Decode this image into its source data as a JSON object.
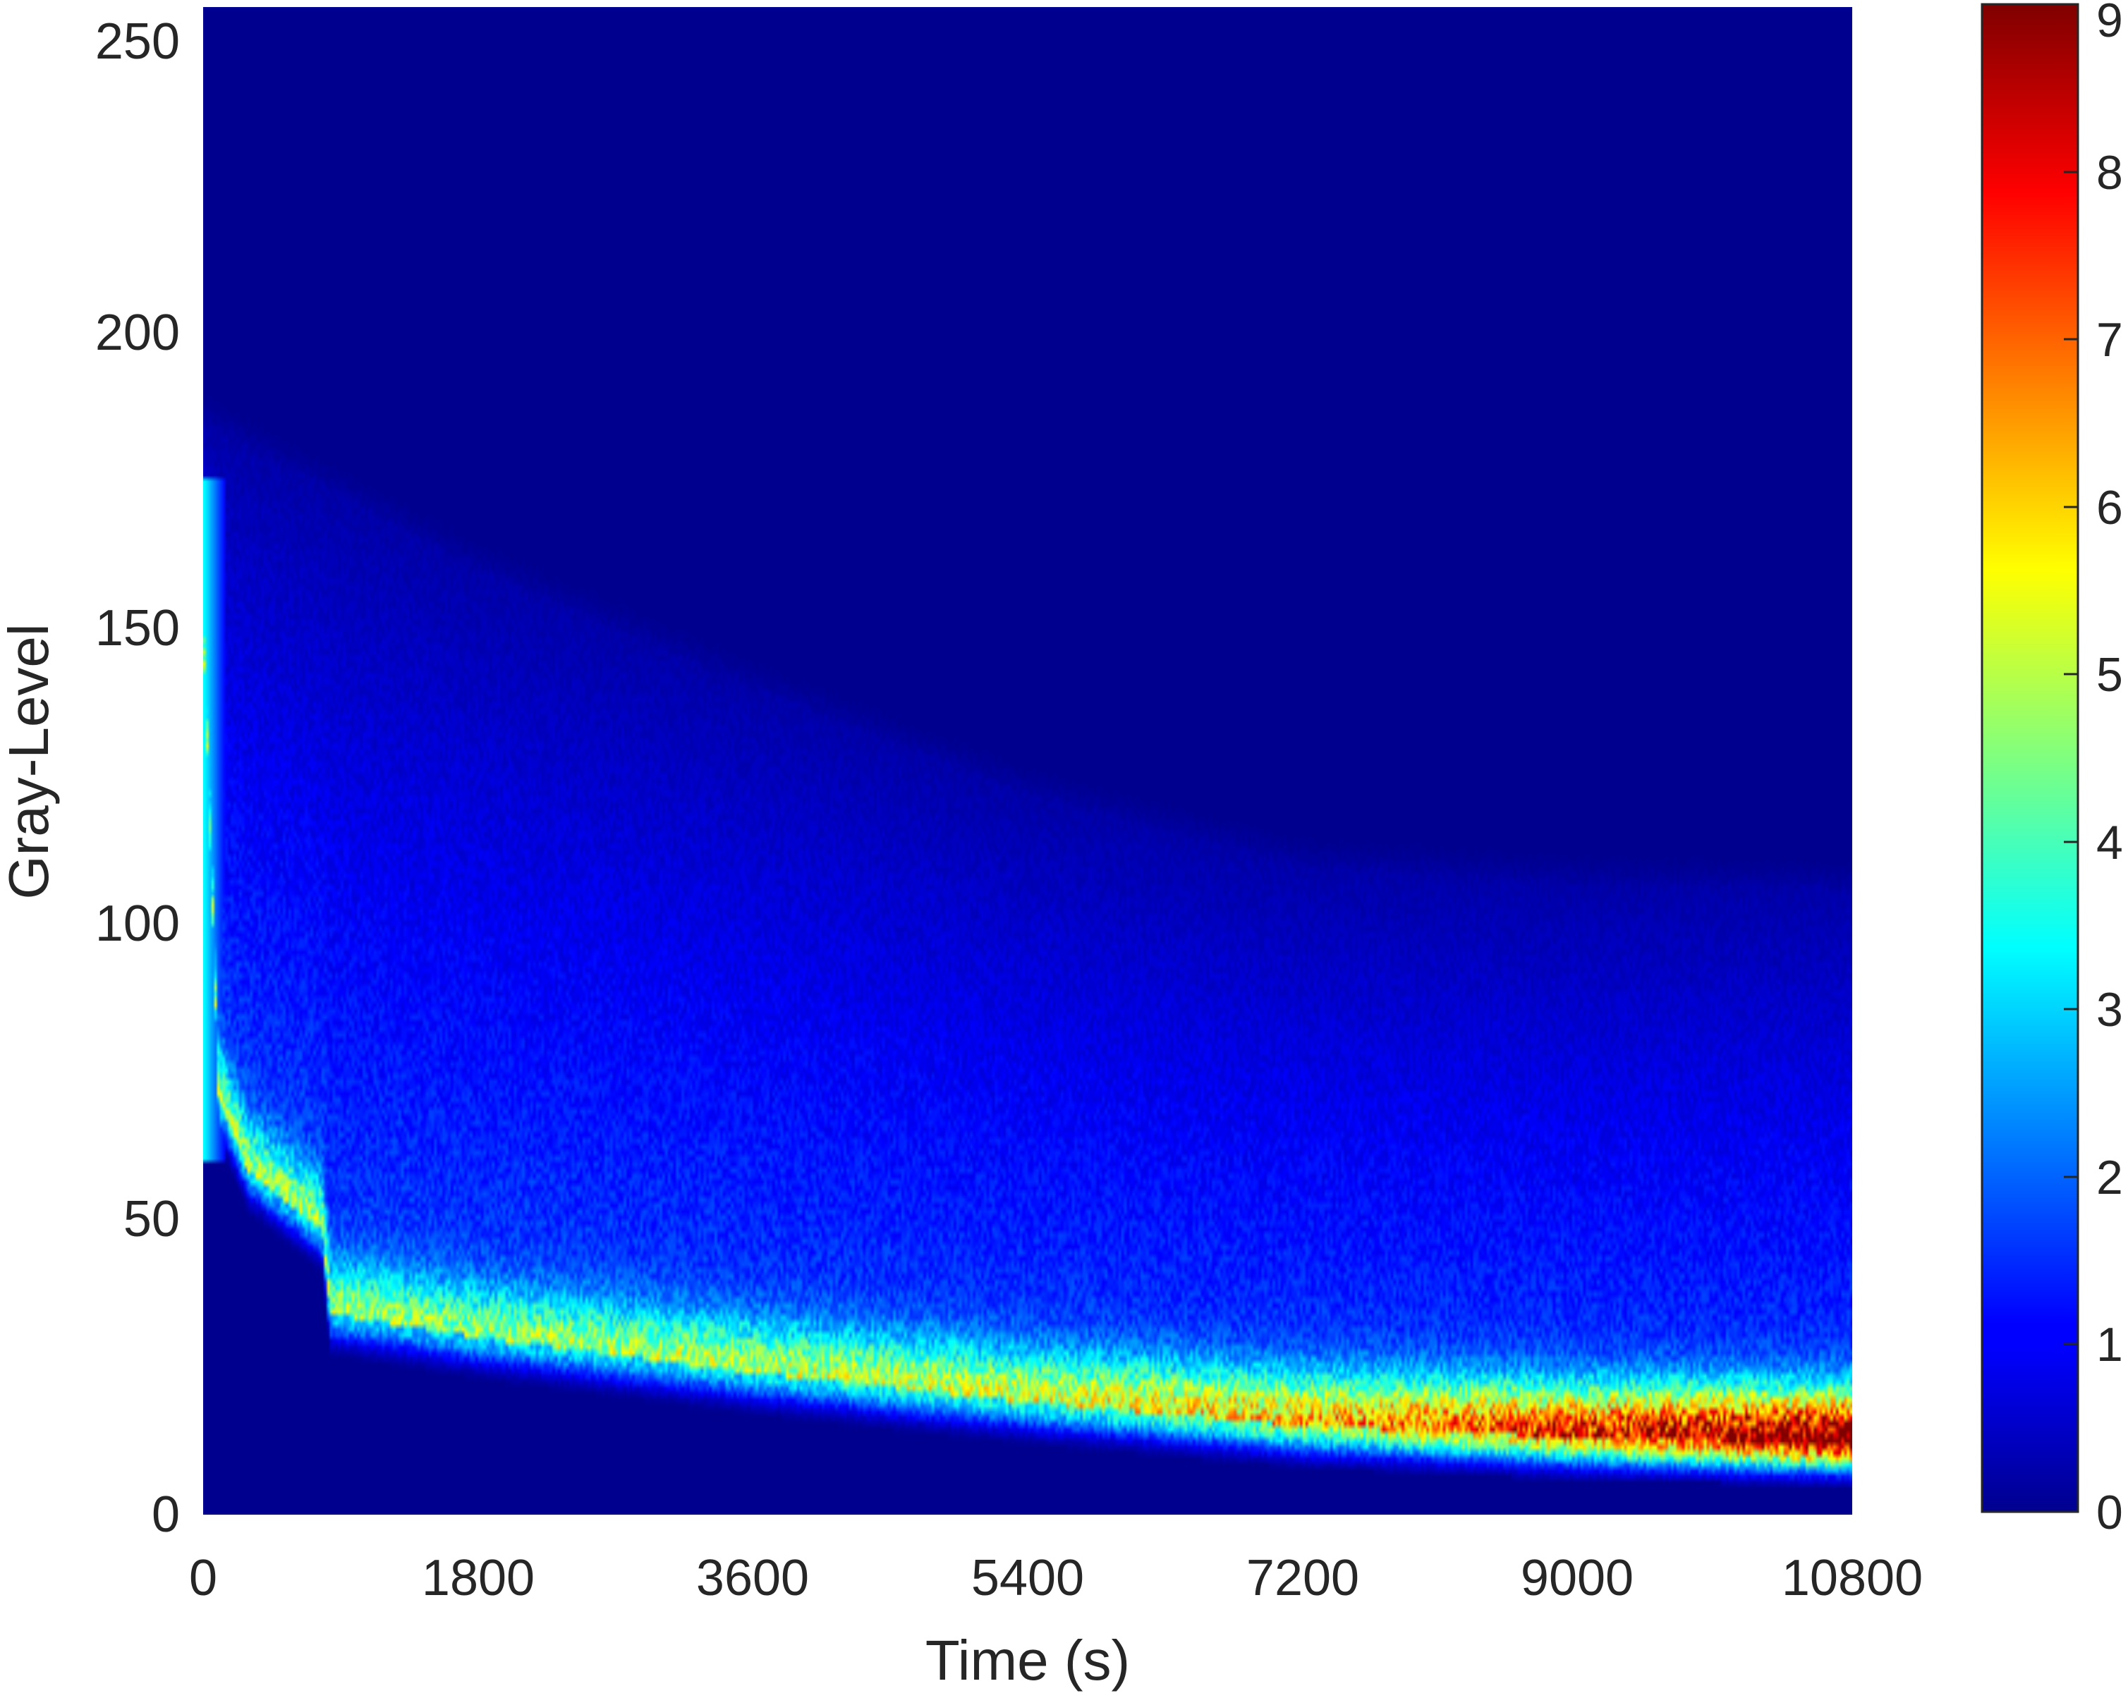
{
  "chart_data": {
    "type": "heatmap",
    "title": "",
    "xlabel": "Time (s)",
    "ylabel": "Gray-Level",
    "xlim": [
      0,
      10800
    ],
    "ylim": [
      0,
      255
    ],
    "x_ticks": [
      "0",
      "1800",
      "3600",
      "5400",
      "7200",
      "9000",
      "10800"
    ],
    "y_ticks": [
      "0",
      "50",
      "100",
      "150",
      "200",
      "250"
    ],
    "colormap": "jet",
    "colorbar": {
      "position": "right",
      "range": [
        0,
        9
      ],
      "ticks": [
        "0",
        "1",
        "2",
        "3",
        "4",
        "5",
        "6",
        "7",
        "8",
        "9"
      ]
    },
    "grid": false,
    "description_features": {
      "peak_band": [
        {
          "t": 0,
          "g": 150
        },
        {
          "t": 100,
          "g": 70
        },
        {
          "t": 300,
          "g": 58
        },
        {
          "t": 780,
          "g": 48
        },
        {
          "t": 830,
          "g": 34
        },
        {
          "t": 1800,
          "g": 30
        },
        {
          "t": 3600,
          "g": 24
        },
        {
          "t": 5400,
          "g": 19
        },
        {
          "t": 7200,
          "g": 15
        },
        {
          "t": 9000,
          "g": 13
        },
        {
          "t": 10800,
          "g": 12
        }
      ],
      "upper_extent": [
        {
          "t": 0,
          "g": 185
        },
        {
          "t": 1800,
          "g": 160
        },
        {
          "t": 3600,
          "g": 140
        },
        {
          "t": 5400,
          "g": 122
        },
        {
          "t": 7200,
          "g": 110
        },
        {
          "t": 9000,
          "g": 107
        },
        {
          "t": 10800,
          "g": 106
        }
      ],
      "peak_intensity": [
        {
          "t": 0,
          "v": 3
        },
        {
          "t": 1800,
          "v": 3
        },
        {
          "t": 5400,
          "v": 3.5
        },
        {
          "t": 7200,
          "v": 4.5
        },
        {
          "t": 9000,
          "v": 6
        },
        {
          "t": 10800,
          "v": 8
        }
      ]
    }
  }
}
